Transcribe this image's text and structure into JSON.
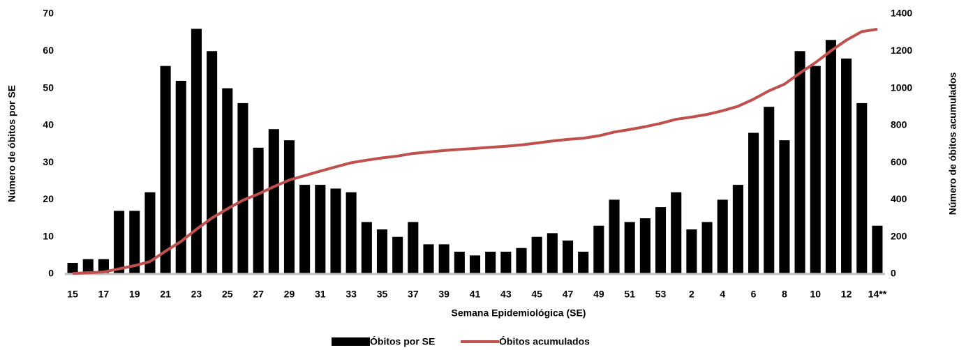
{
  "chart_data": {
    "type": "bar_line",
    "x_label": "Semana Epidemiológica (SE)",
    "y_label": "Número de óbitos por SE",
    "y2_label": "Número de óbitos acumulados",
    "categories": [
      "15",
      null,
      "17",
      null,
      "19",
      null,
      "21",
      null,
      "23",
      null,
      "25",
      null,
      "27",
      null,
      "29",
      null,
      "31",
      null,
      "33",
      null,
      "35",
      null,
      "37",
      null,
      "39",
      null,
      "41",
      null,
      "43",
      null,
      "45",
      null,
      "47",
      null,
      "49",
      null,
      "51",
      null,
      "53",
      null,
      "2",
      null,
      "4",
      null,
      "6",
      null,
      "8",
      null,
      "10",
      null,
      "12",
      null,
      "14**"
    ],
    "series": [
      {
        "name": "Óbitos por SE",
        "type": "bar",
        "color": "#000000",
        "values": [
          3,
          4,
          4,
          17,
          17,
          22,
          56,
          52,
          66,
          60,
          50,
          46,
          34,
          39,
          36,
          24,
          24,
          23,
          22,
          14,
          12,
          10,
          14,
          8,
          8,
          6,
          5,
          6,
          6,
          7,
          10,
          11,
          9,
          6,
          13,
          20,
          14,
          15,
          18,
          22,
          12,
          14,
          20,
          24,
          38,
          45,
          36,
          60,
          56,
          63,
          58,
          46,
          13
        ]
      },
      {
        "name": "Óbitos acumulados",
        "type": "line",
        "axis": "y2",
        "color": "#c0504d",
        "values": [
          3,
          7,
          11,
          28,
          45,
          67,
          123,
          175,
          241,
          301,
          351,
          397,
          431,
          470,
          506,
          530,
          554,
          577,
          599,
          613,
          625,
          635,
          649,
          657,
          665,
          671,
          676,
          682,
          688,
          695,
          705,
          716,
          725,
          731,
          744,
          764,
          778,
          793,
          811,
          833,
          845,
          859,
          879,
          903,
          941,
          986,
          1022,
          1082,
          1138,
          1201,
          1259,
          1305,
          1318
        ]
      }
    ],
    "ylim": [
      0,
      70
    ],
    "yticks": [
      0,
      10,
      20,
      30,
      40,
      50,
      60,
      70
    ],
    "y2lim": [
      0,
      1400
    ],
    "y2ticks": [
      0,
      200,
      400,
      600,
      800,
      1000,
      1200,
      1400
    ],
    "grid": false,
    "legend": "bottom"
  }
}
